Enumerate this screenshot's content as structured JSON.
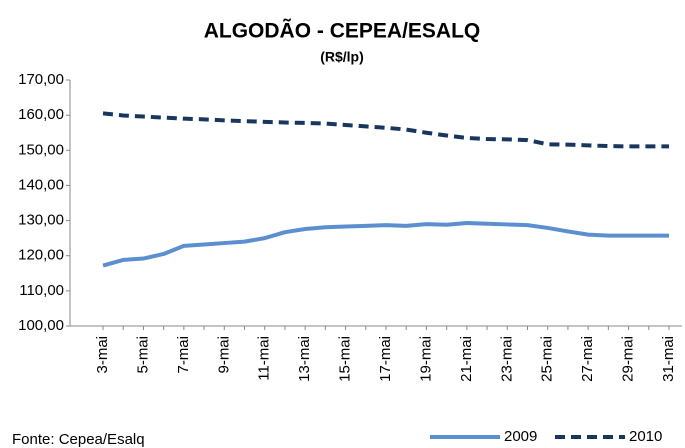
{
  "chart_data": {
    "type": "line",
    "title": "ALGODÃO - CEPEA/ESALQ",
    "subtitle": "(R$/lp)",
    "source": "Fonte: Cepea/Esalq",
    "categories": [
      "3-mai",
      null,
      "5-mai",
      null,
      "7-mai",
      null,
      "9-mai",
      null,
      "11-mai",
      null,
      "13-mai",
      null,
      "15-mai",
      null,
      "17-mai",
      null,
      "19-mai",
      null,
      "21-mai",
      null,
      "23-mai",
      null,
      "25-mai",
      null,
      "27-mai",
      null,
      "29-mai",
      null,
      "31-mai"
    ],
    "series": [
      {
        "name": "2009",
        "color": "#5b8fd0",
        "dashed": false,
        "values": [
          117.2,
          118.8,
          119.2,
          120.5,
          122.8,
          123.2,
          123.6,
          124.0,
          125.0,
          126.7,
          127.6,
          128.1,
          128.3,
          128.5,
          128.7,
          128.5,
          129.0,
          128.8,
          129.3,
          129.1,
          128.9,
          128.7,
          127.9,
          126.9,
          126.0,
          125.7,
          125.7,
          125.7,
          125.7
        ]
      },
      {
        "name": "2010",
        "color": "#17375e",
        "dashed": true,
        "values": [
          160.5,
          159.9,
          159.6,
          159.3,
          159.0,
          158.8,
          158.5,
          158.3,
          158.1,
          157.9,
          157.8,
          157.6,
          157.2,
          156.8,
          156.4,
          155.9,
          155.0,
          154.2,
          153.5,
          153.2,
          153.1,
          152.9,
          151.7,
          151.6,
          151.4,
          151.2,
          151.1,
          151.1,
          151.1
        ]
      }
    ],
    "ylim": [
      100,
      170
    ],
    "yticks": [
      {
        "value": 100,
        "label": "100,00"
      },
      {
        "value": 110,
        "label": "110,00"
      },
      {
        "value": 120,
        "label": "120,00"
      },
      {
        "value": 130,
        "label": "130,00"
      },
      {
        "value": 140,
        "label": "140,00"
      },
      {
        "value": 150,
        "label": "150,00"
      },
      {
        "value": 160,
        "label": "160,00"
      },
      {
        "value": 170,
        "label": "170,00"
      }
    ],
    "legend": "bottom-right",
    "grid": false
  }
}
